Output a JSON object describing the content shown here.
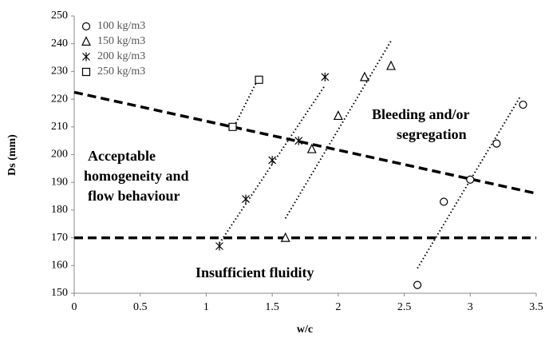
{
  "chart_data": {
    "type": "scatter",
    "x_label": "w/c",
    "y_label": "Ds (mm)",
    "xlim": [
      0,
      3.5
    ],
    "xticks": [
      0,
      0.5,
      1,
      1.5,
      2,
      2.5,
      3,
      3.5
    ],
    "ylim": [
      150,
      250
    ],
    "yticks": [
      150,
      160,
      170,
      180,
      190,
      200,
      210,
      220,
      230,
      240,
      250
    ],
    "grid": false,
    "legend": "top-left",
    "series": [
      {
        "name": "100 kg/m3",
        "marker": "circle",
        "color": "#000000",
        "x": [
          2.6,
          2.8,
          3.0,
          3.2,
          3.4
        ],
        "values": [
          153,
          183,
          191,
          204,
          218
        ],
        "trendline": {
          "x": [
            2.6,
            3.38
          ],
          "y": [
            159,
            221
          ]
        }
      },
      {
        "name": "150 kg/m3",
        "marker": "triangle",
        "color": "#000000",
        "x": [
          1.6,
          1.8,
          2.0,
          2.2,
          2.4
        ],
        "values": [
          170,
          202,
          214,
          228,
          232
        ],
        "trendline": {
          "x": [
            1.6,
            2.4
          ],
          "y": [
            177,
            241
          ]
        }
      },
      {
        "name": "200 kg/m3",
        "marker": "star",
        "color": "#000000",
        "x": [
          1.1,
          1.3,
          1.5,
          1.7,
          1.9
        ],
        "values": [
          167,
          184,
          198,
          205,
          228
        ],
        "trendline": {
          "x": [
            1.1,
            1.9
          ],
          "y": [
            168,
            225
          ]
        }
      },
      {
        "name": "250 kg/m3",
        "marker": "square",
        "color": "#000000",
        "x": [
          1.2,
          1.4
        ],
        "values": [
          210,
          227
        ],
        "trendline": {
          "x": [
            1.2,
            1.4
          ],
          "y": [
            209,
            228
          ]
        }
      }
    ],
    "reference_lines": [
      {
        "x": [
          0,
          3.5
        ],
        "y": [
          170,
          170
        ]
      },
      {
        "x": [
          0,
          3.5
        ],
        "y": [
          222.5,
          186
        ]
      }
    ],
    "annotations": [
      "Bleeding and/or",
      "segregation",
      "Acceptable",
      "homogeneity and",
      "flow behaviour",
      "Insufficient fluidity"
    ]
  }
}
